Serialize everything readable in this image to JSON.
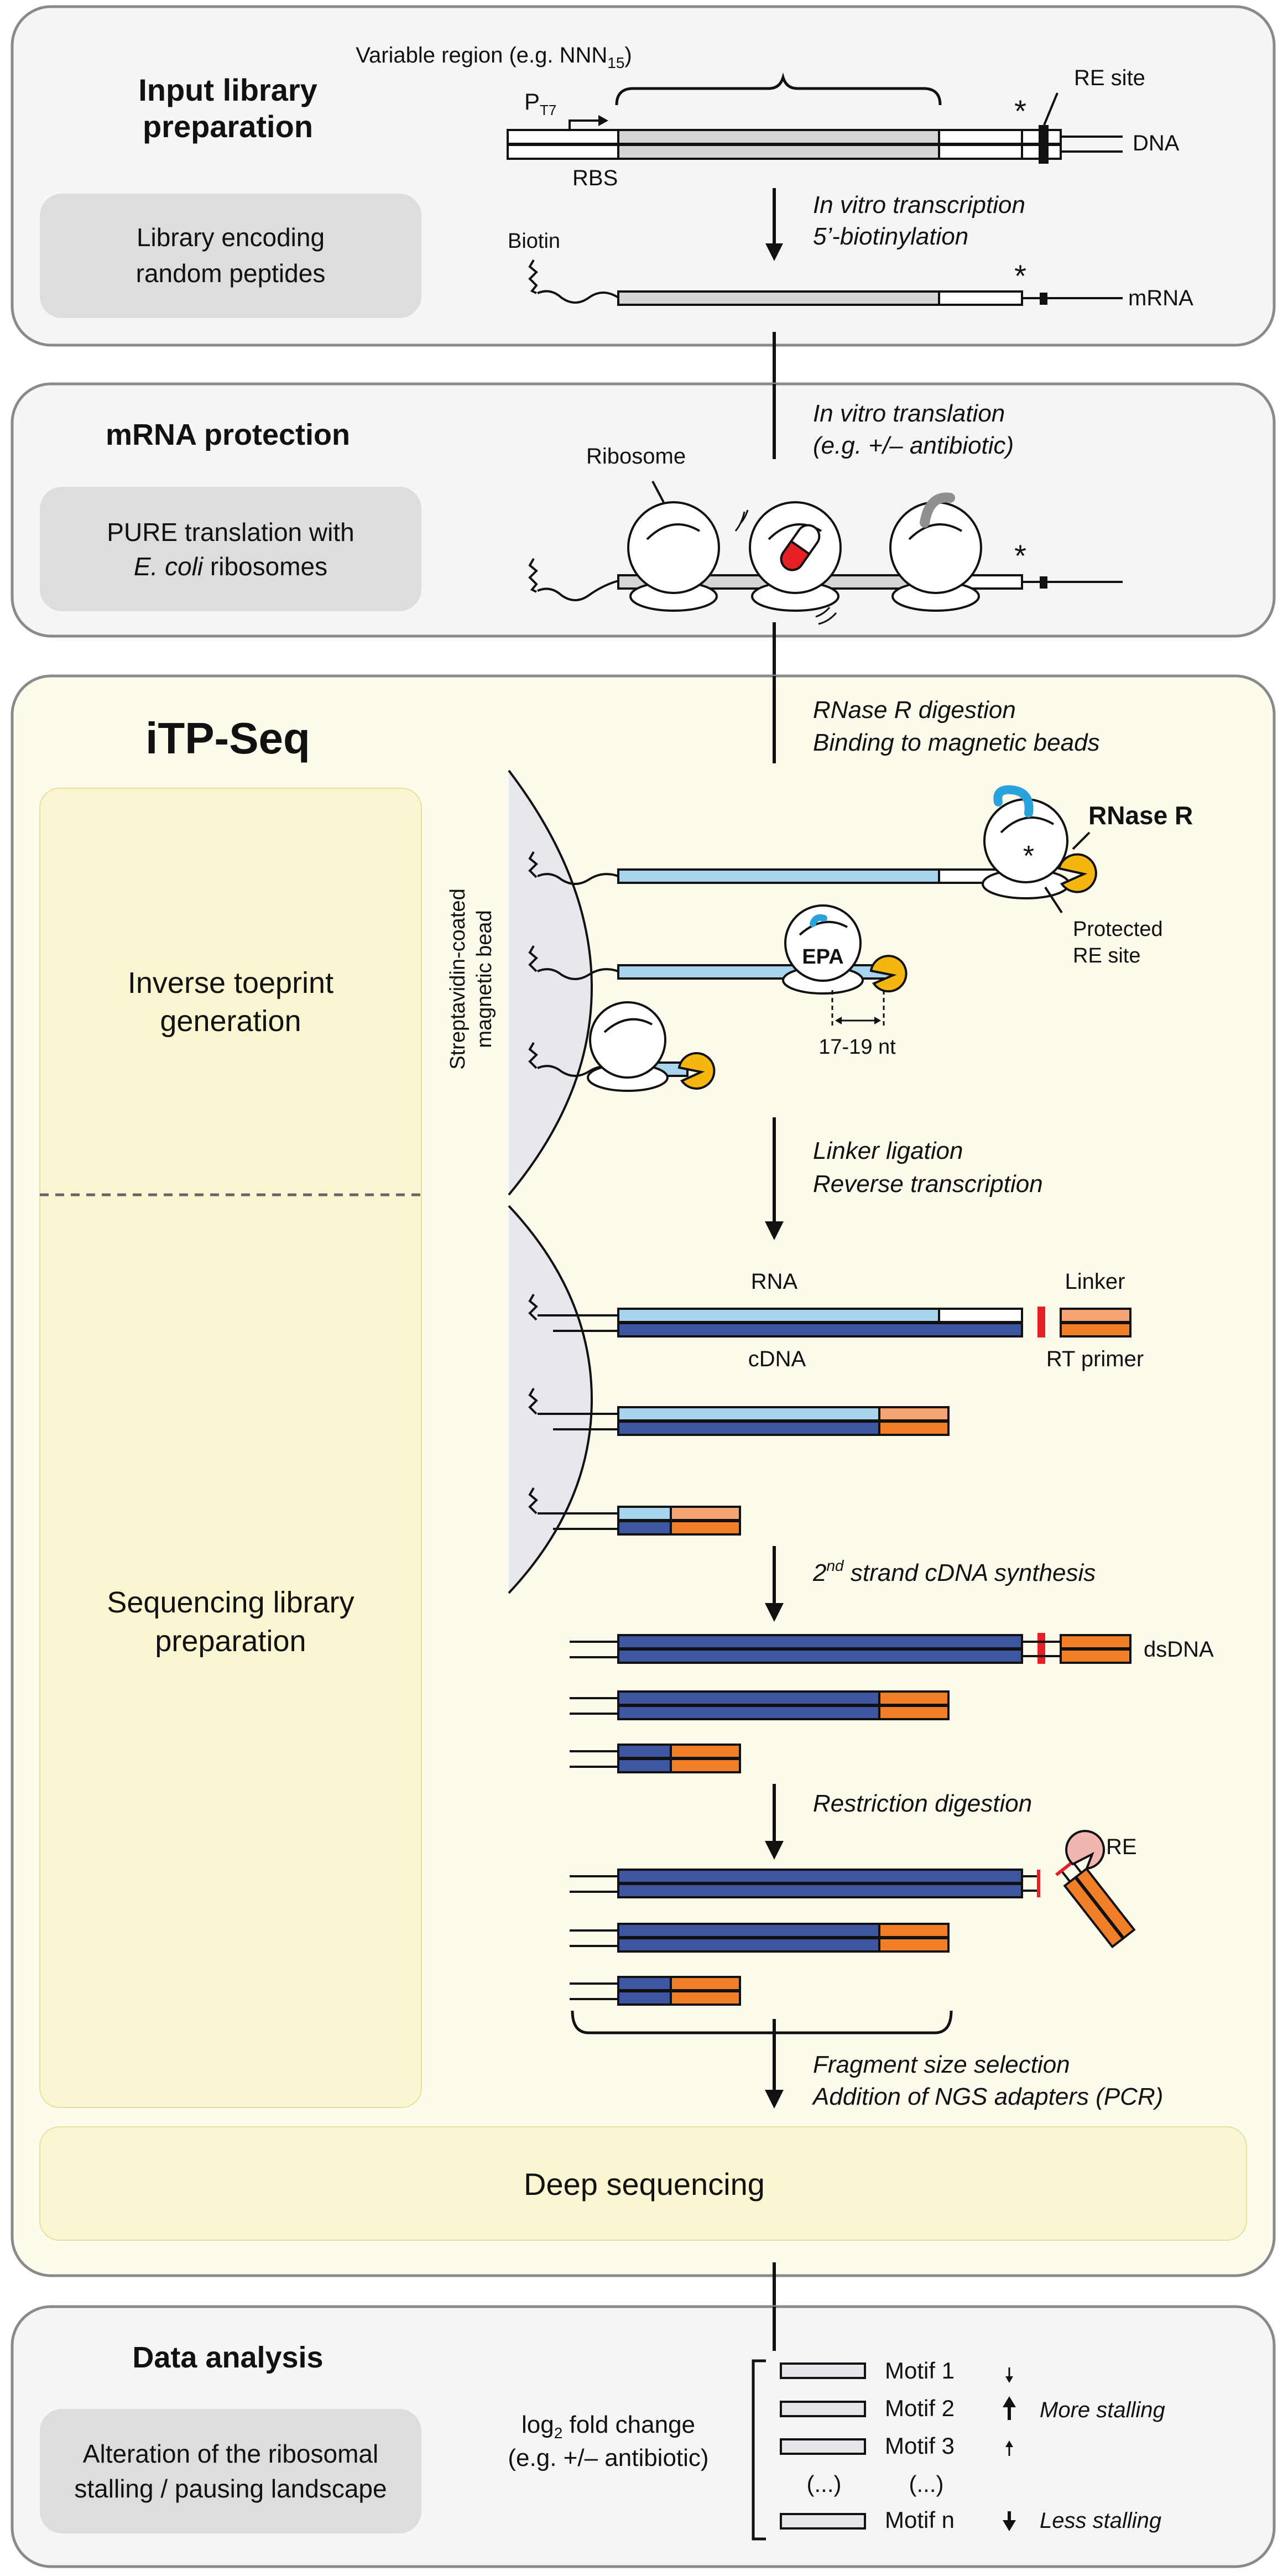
{
  "panels": {
    "input": {
      "title_line1": "Input library",
      "title_line2": "preparation",
      "sub_line1": "Library encoding",
      "sub_line2": "random peptides",
      "variable_region_prefix": "Variable region (e.g. NNN",
      "variable_region_sub": "15",
      "variable_region_suffix": ")",
      "promoter": "P",
      "promoter_sub": "T7",
      "rbs": "RBS",
      "re_site": "RE site",
      "dna": "DNA",
      "biotin": "Biotin",
      "mrna": "mRNA",
      "stop": "*",
      "step_line1_italic": "In vitro",
      "step_line1_rest": " transcription",
      "step_line2": "5’-biotinylation"
    },
    "mrna_protection": {
      "title": "mRNA protection",
      "sub_line1": "PURE translation with",
      "sub_line2_italic": "E. coli",
      "sub_line2_rest": " ribosomes",
      "ribosome": "Ribosome",
      "step_line1_italic": "In vitro",
      "step_line1_rest": " translation",
      "step_line2": "(e.g. +/– antibiotic)"
    },
    "itpseq": {
      "title": "iTP-Seq",
      "inverse_line1": "Inverse toeprint",
      "inverse_line2": "generation",
      "seqlib_line1": "Sequencing library",
      "seqlib_line2": "preparation",
      "deep_sequencing": "Deep sequencing",
      "bead_line1": "Streptavidin-coated",
      "bead_line2": "magnetic bead",
      "rnase_r": "RNase R",
      "protected_line1": "Protected",
      "protected_line2": "RE site",
      "epa": "EPA",
      "nt_label": "17-19 nt",
      "rna": "RNA",
      "cdna": "cDNA",
      "linker": "Linker",
      "rt_primer": "RT primer",
      "dsdna": "dsDNA",
      "re": "RE",
      "step_rnase_line1": "RNase R digestion",
      "step_rnase_line2": "Binding to magnetic beads",
      "step_linker_line1": "Linker ligation",
      "step_linker_line2": "Reverse transcription",
      "step_second_sup": "nd",
      "step_second_num": "2",
      "step_second_rest": " strand cDNA synthesis",
      "step_restriction": "Restriction digestion",
      "step_frag_line1": "Fragment size selection",
      "step_frag_line2": "Addition of NGS adapters (PCR)"
    },
    "data_analysis": {
      "title": "Data analysis",
      "sub_line1": "Alteration of the ribosomal",
      "sub_line2": "stalling / pausing landscape",
      "log_prefix": "log",
      "log_sub": "2",
      "log_suffix": " fold change",
      "log_line2": "(e.g. +/– antibiotic)",
      "motifs": [
        "Motif 1",
        "Motif 2",
        "Motif 3",
        "(...)",
        "Motif n"
      ],
      "ellipsis_left": "(...)",
      "more_stalling": "More stalling",
      "less_stalling": "Less stalling"
    }
  },
  "colors": {
    "panel_grey": "#f5f5f4",
    "panel_cream": "#fdfbec",
    "label_grey": "#dcdddf",
    "label_yellow": "#fbf6d2",
    "rna_light_blue": "#a9d4ee",
    "cdna_dark_blue": "#3d56a0",
    "orange": "#f07f27",
    "light_orange": "#f4a572",
    "yellow_rnase": "#f5b70f",
    "red": "#e52125",
    "cyan": "#2aa3dd",
    "re_pink": "#f2b6b0"
  }
}
